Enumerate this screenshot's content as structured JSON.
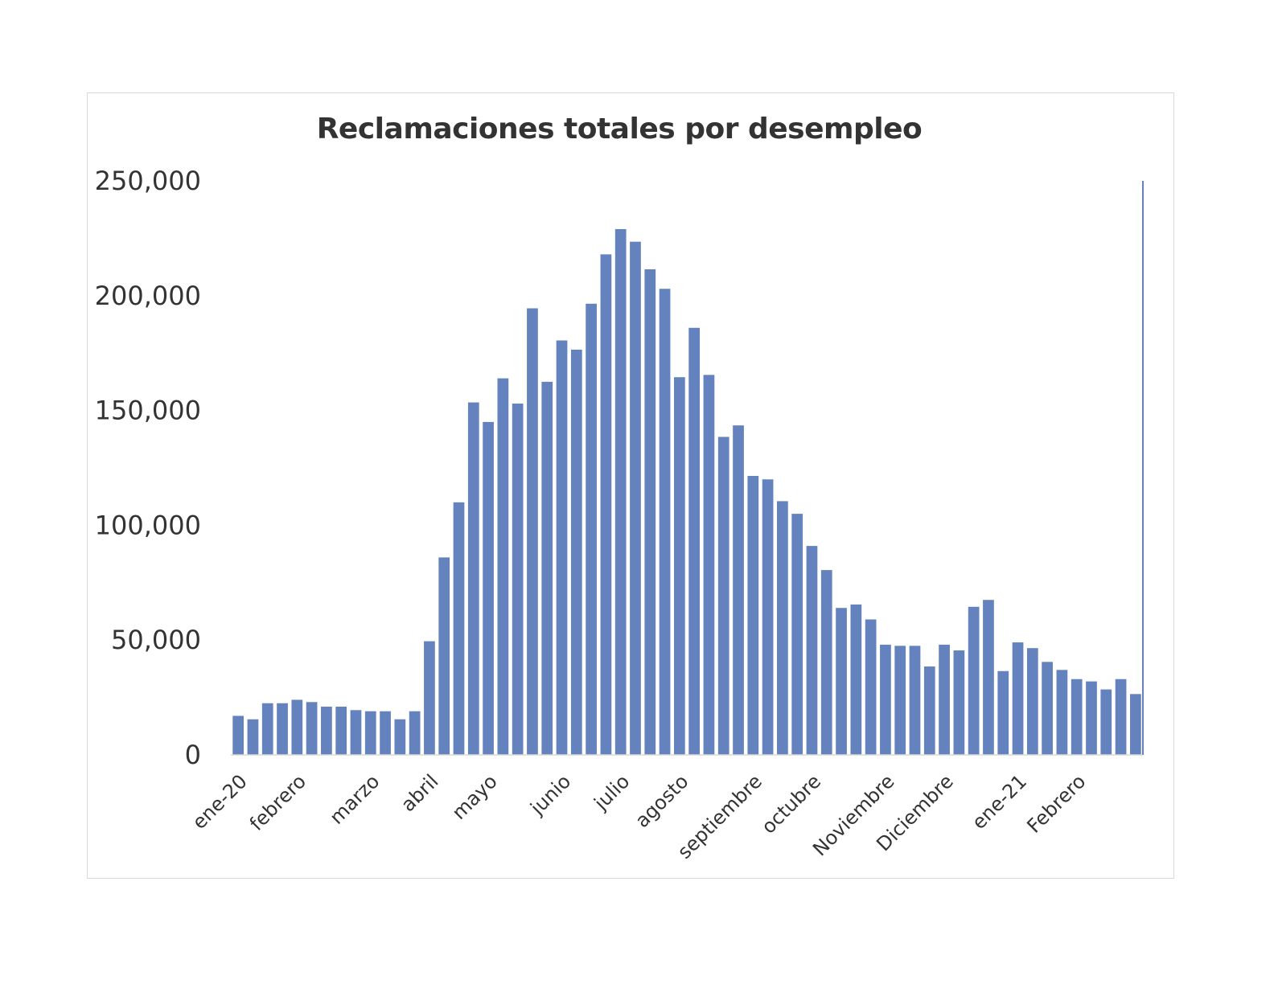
{
  "chart_data": {
    "type": "bar",
    "title": "Reclamaciones totales por desempleo",
    "xlabel": "",
    "ylabel": "",
    "ylim": [
      0,
      250000
    ],
    "yticks": [
      "0",
      "50,000",
      "100,000",
      "150,000",
      "200,000",
      "250,000"
    ],
    "grid": false,
    "bar_color": "#6482bd",
    "x_labels": [
      {
        "index": 0,
        "label": "ene-20"
      },
      {
        "index": 4,
        "label": "febrero"
      },
      {
        "index": 9,
        "label": "marzo"
      },
      {
        "index": 13,
        "label": "abril"
      },
      {
        "index": 17,
        "label": "mayo"
      },
      {
        "index": 22,
        "label": "junio"
      },
      {
        "index": 26,
        "label": "julio"
      },
      {
        "index": 30,
        "label": "agosto"
      },
      {
        "index": 35,
        "label": "septiembre"
      },
      {
        "index": 39,
        "label": "octubre"
      },
      {
        "index": 44,
        "label": "Noviembre"
      },
      {
        "index": 48,
        "label": "Diciembre"
      },
      {
        "index": 53,
        "label": "ene-21"
      },
      {
        "index": 57,
        "label": "Febrero"
      }
    ],
    "values": [
      17000,
      15500,
      22500,
      22500,
      24000,
      23000,
      21000,
      21000,
      19500,
      19000,
      19000,
      15500,
      19000,
      49500,
      86000,
      110000,
      153500,
      145000,
      164000,
      153000,
      194500,
      162500,
      180500,
      176500,
      196500,
      218000,
      229000,
      223500,
      211500,
      203000,
      164500,
      186000,
      165500,
      138500,
      143500,
      121500,
      120000,
      110500,
      105000,
      91000,
      80500,
      64000,
      65500,
      59000,
      48000,
      47500,
      47500,
      38500,
      48000,
      45500,
      64500,
      67500,
      36500,
      49000,
      46500,
      40500,
      37000,
      33000,
      32000,
      28500,
      33000,
      26500
    ]
  }
}
